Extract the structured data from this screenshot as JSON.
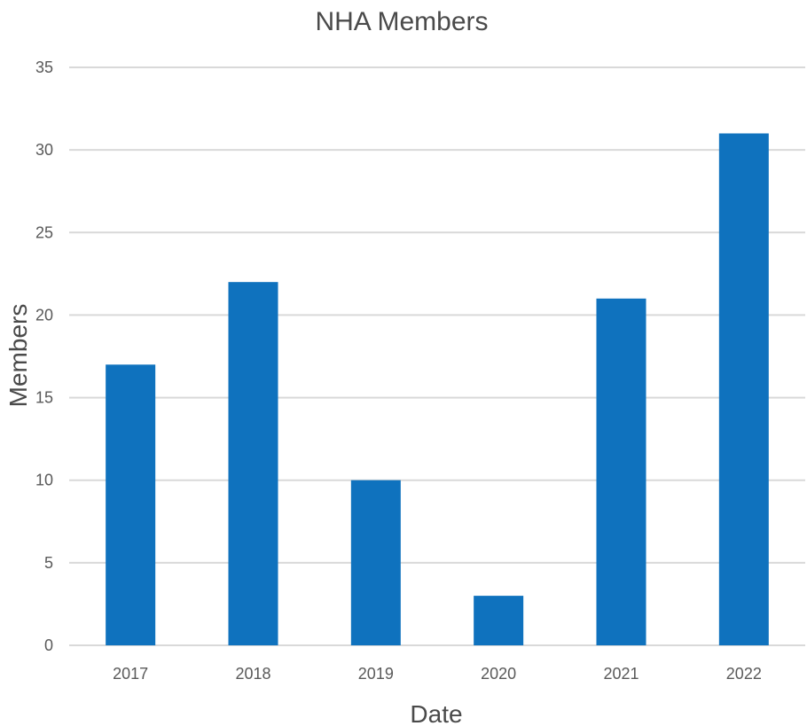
{
  "chart_data": {
    "type": "bar",
    "title": "NHA Members",
    "xlabel": "Date",
    "ylabel": "Members",
    "categories": [
      "2017",
      "2018",
      "2019",
      "2020",
      "2021",
      "2022"
    ],
    "values": [
      17,
      22,
      10,
      3,
      21,
      31
    ],
    "ylim": [
      0,
      35
    ],
    "yticks": [
      "0",
      "5",
      "10",
      "15",
      "20",
      "25",
      "30",
      "35"
    ],
    "grid": true,
    "legend": "none",
    "bar_color": "#0f72be",
    "grid_color": "#d9d9d9"
  }
}
